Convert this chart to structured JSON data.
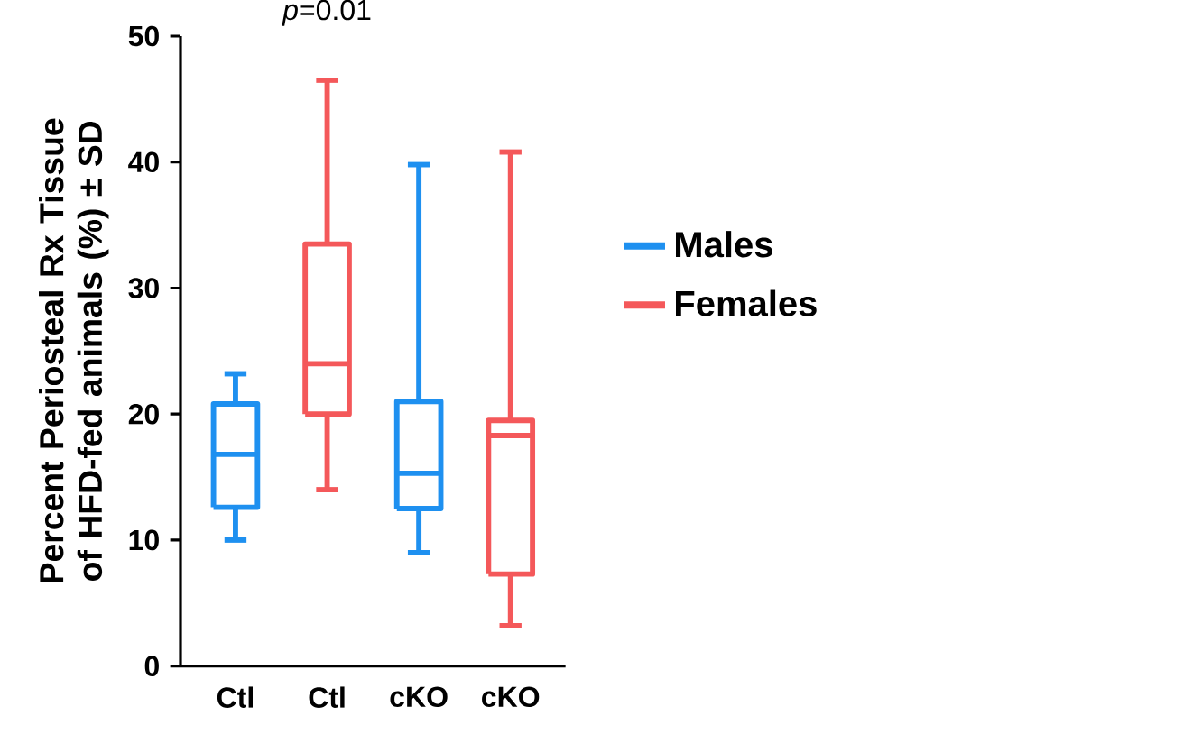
{
  "chart_data": {
    "type": "box",
    "ylabel": "Percent Periosteal Rx Tissue of HFD-fed animals (%) ± SD",
    "categories": [
      "Ctl",
      "Ctl",
      "cKO",
      "cKO"
    ],
    "series": [
      {
        "name": "Males",
        "color": "#1e90f0",
        "boxes": [
          {
            "low": 10,
            "q1": 12.6,
            "median": 16.8,
            "q3": 20.8,
            "high": 23.2
          },
          null,
          {
            "low": 9,
            "q1": 12.5,
            "median": 15.3,
            "q3": 21,
            "high": 39.8
          },
          null
        ]
      },
      {
        "name": "Females",
        "color": "#f4585a",
        "boxes": [
          null,
          {
            "low": 14,
            "q1": 20,
            "median": 24,
            "q3": 33.5,
            "high": 46.5
          },
          null,
          {
            "low": 3.2,
            "q1": 7.3,
            "median": 18.3,
            "q3": 19.5,
            "high": 40.8
          }
        ]
      }
    ],
    "ylim": [
      0,
      50
    ],
    "yticks": [
      0,
      10,
      20,
      30,
      40,
      50
    ],
    "annotations": [
      "*p*=0.01"
    ],
    "legend": "right",
    "grid": false
  }
}
